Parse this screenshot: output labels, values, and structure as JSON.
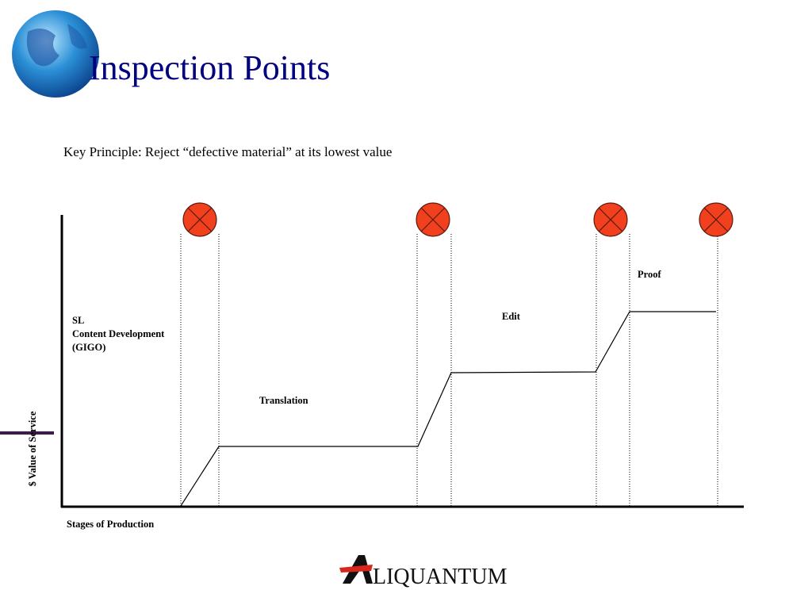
{
  "header": {
    "title": "Inspection Points"
  },
  "principle": "Key Principle: Reject “defective material” at its lowest value",
  "stages": [
    [
      "SL",
      "Content Development",
      "(GIGO)"
    ],
    [
      "Translation"
    ],
    [
      "Edit"
    ],
    [
      "Proof"
    ]
  ],
  "axes": {
    "x_label": "Stages of Production",
    "y_label": "$ Value of Service"
  },
  "logo": {
    "text": "LIQUANTUM"
  }
}
